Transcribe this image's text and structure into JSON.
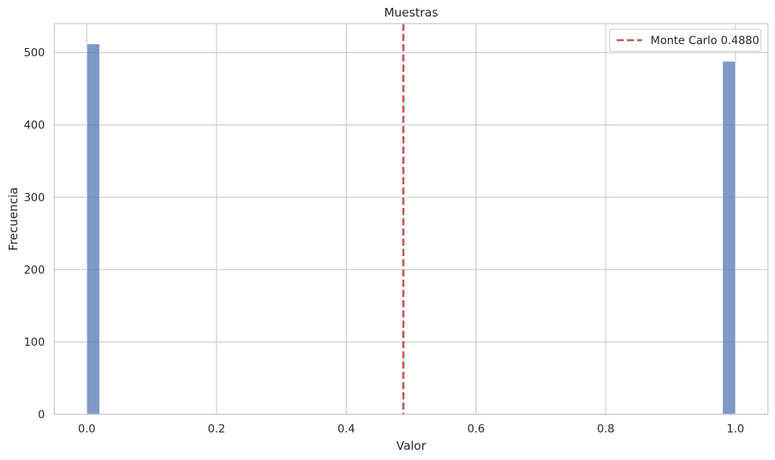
{
  "chart_data": {
    "type": "bar",
    "title": "Muestras",
    "xlabel": "Valor",
    "ylabel": "Frecuencia",
    "xlim": [
      -0.05,
      1.05
    ],
    "ylim": [
      0,
      540
    ],
    "xticks": [
      0.0,
      0.2,
      0.4,
      0.6,
      0.8,
      1.0
    ],
    "xtick_labels": [
      "0.0",
      "0.2",
      "0.4",
      "0.6",
      "0.8",
      "1.0"
    ],
    "yticks": [
      0,
      100,
      200,
      300,
      400,
      500
    ],
    "ytick_labels": [
      "0",
      "100",
      "200",
      "300",
      "400",
      "500"
    ],
    "grid": true,
    "histogram": {
      "bins": 50,
      "range": [
        0,
        1
      ],
      "bars": [
        {
          "x_start": 0.0,
          "x_end": 0.02,
          "count": 512
        },
        {
          "x_start": 0.98,
          "x_end": 1.0,
          "count": 488
        }
      ],
      "color": "#4c72b0"
    },
    "reference_line": {
      "x": 0.488,
      "label": "Monte Carlo 0.4880",
      "color": "#c44e52",
      "style": "dashed"
    },
    "legend": {
      "position": "top-right",
      "entries": [
        "Monte Carlo 0.4880"
      ]
    }
  }
}
